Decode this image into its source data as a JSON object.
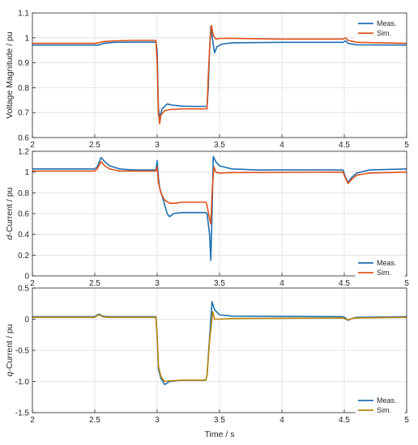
{
  "chart_data": [
    {
      "type": "line",
      "ylabel": "Voltage Magnitude / pu",
      "xlabel": "",
      "xlim": [
        2,
        5
      ],
      "ylim": [
        0.6,
        1.1
      ],
      "xticks": [
        "2",
        "2.5",
        "3",
        "3.5",
        "4",
        "4.5",
        "5"
      ],
      "yticks": [
        "0.6",
        "0.7",
        "0.8",
        "0.9",
        "1",
        "1.1"
      ],
      "grid": true,
      "legend_position": "top-right",
      "series": [
        {
          "name": "Meas.",
          "color": "#1f6fb0",
          "points": [
            [
              2.0,
              0.971
            ],
            [
              2.5,
              0.971
            ],
            [
              2.53,
              0.971
            ],
            [
              2.57,
              0.978
            ],
            [
              2.65,
              0.982
            ],
            [
              2.8,
              0.983
            ],
            [
              2.99,
              0.983
            ],
            [
              3.0,
              0.95
            ],
            [
              3.01,
              0.72
            ],
            [
              3.02,
              0.68
            ],
            [
              3.04,
              0.715
            ],
            [
              3.08,
              0.735
            ],
            [
              3.12,
              0.73
            ],
            [
              3.2,
              0.726
            ],
            [
              3.3,
              0.725
            ],
            [
              3.4,
              0.725
            ],
            [
              3.41,
              0.8
            ],
            [
              3.42,
              0.95
            ],
            [
              3.43,
              1.045
            ],
            [
              3.445,
              0.99
            ],
            [
              3.46,
              0.94
            ],
            [
              3.48,
              0.965
            ],
            [
              3.52,
              0.975
            ],
            [
              3.6,
              0.98
            ],
            [
              4.0,
              0.982
            ],
            [
              4.49,
              0.982
            ],
            [
              4.51,
              0.988
            ],
            [
              4.53,
              0.978
            ],
            [
              4.6,
              0.972
            ],
            [
              5.0,
              0.971
            ]
          ]
        },
        {
          "name": "Sim.",
          "color": "#e0521a",
          "points": [
            [
              2.0,
              0.978
            ],
            [
              2.5,
              0.978
            ],
            [
              2.53,
              0.98
            ],
            [
              2.57,
              0.985
            ],
            [
              2.65,
              0.988
            ],
            [
              2.8,
              0.99
            ],
            [
              2.99,
              0.99
            ],
            [
              3.0,
              0.9
            ],
            [
              3.01,
              0.7
            ],
            [
              3.02,
              0.655
            ],
            [
              3.03,
              0.69
            ],
            [
              3.06,
              0.708
            ],
            [
              3.1,
              0.712
            ],
            [
              3.2,
              0.715
            ],
            [
              3.3,
              0.715
            ],
            [
              3.4,
              0.715
            ],
            [
              3.41,
              0.85
            ],
            [
              3.425,
              1.0
            ],
            [
              3.435,
              1.05
            ],
            [
              3.45,
              1.01
            ],
            [
              3.47,
              0.995
            ],
            [
              3.5,
              0.998
            ],
            [
              3.6,
              0.998
            ],
            [
              4.0,
              0.995
            ],
            [
              4.49,
              0.995
            ],
            [
              4.51,
              1.0
            ],
            [
              4.53,
              0.99
            ],
            [
              4.6,
              0.982
            ],
            [
              5.0,
              0.978
            ]
          ]
        }
      ]
    },
    {
      "type": "line",
      "ylabel": "d-Current / pu",
      "ylabel_italic": "d",
      "ylabel_rest": "-Current / pu",
      "xlabel": "",
      "xlim": [
        2,
        5
      ],
      "ylim": [
        0,
        1.2
      ],
      "xticks": [
        "2",
        "2.5",
        "3",
        "3.5",
        "4",
        "4.5",
        "5"
      ],
      "yticks": [
        "0",
        "0.2",
        "0.4",
        "0.6",
        "0.8",
        "1",
        "1.2"
      ],
      "grid": true,
      "legend_position": "bottom-right",
      "series": [
        {
          "name": "Meas.",
          "color": "#1f6fb0",
          "points": [
            [
              2.0,
              1.03
            ],
            [
              2.5,
              1.03
            ],
            [
              2.52,
              1.05
            ],
            [
              2.55,
              1.14
            ],
            [
              2.58,
              1.1
            ],
            [
              2.62,
              1.06
            ],
            [
              2.7,
              1.03
            ],
            [
              2.8,
              1.02
            ],
            [
              2.99,
              1.02
            ],
            [
              3.0,
              1.11
            ],
            [
              3.01,
              0.95
            ],
            [
              3.02,
              0.85
            ],
            [
              3.05,
              0.73
            ],
            [
              3.08,
              0.6
            ],
            [
              3.1,
              0.57
            ],
            [
              3.13,
              0.6
            ],
            [
              3.2,
              0.61
            ],
            [
              3.3,
              0.61
            ],
            [
              3.39,
              0.61
            ],
            [
              3.4,
              0.6
            ],
            [
              3.42,
              0.4
            ],
            [
              3.43,
              0.15
            ],
            [
              3.44,
              0.6
            ],
            [
              3.45,
              1.15
            ],
            [
              3.47,
              1.1
            ],
            [
              3.5,
              1.06
            ],
            [
              3.6,
              1.03
            ],
            [
              3.8,
              1.02
            ],
            [
              4.49,
              1.02
            ],
            [
              4.51,
              0.95
            ],
            [
              4.53,
              0.9
            ],
            [
              4.56,
              0.95
            ],
            [
              4.6,
              0.99
            ],
            [
              4.7,
              1.02
            ],
            [
              5.0,
              1.03
            ]
          ]
        },
        {
          "name": "Sim.",
          "color": "#e0521a",
          "points": [
            [
              2.0,
              1.01
            ],
            [
              2.5,
              1.01
            ],
            [
              2.52,
              1.03
            ],
            [
              2.55,
              1.1
            ],
            [
              2.58,
              1.06
            ],
            [
              2.62,
              1.03
            ],
            [
              2.7,
              1.01
            ],
            [
              2.99,
              1.01
            ],
            [
              3.0,
              1.05
            ],
            [
              3.01,
              0.9
            ],
            [
              3.03,
              0.8
            ],
            [
              3.06,
              0.73
            ],
            [
              3.1,
              0.7
            ],
            [
              3.15,
              0.7
            ],
            [
              3.2,
              0.71
            ],
            [
              3.3,
              0.71
            ],
            [
              3.39,
              0.71
            ],
            [
              3.4,
              0.68
            ],
            [
              3.42,
              0.55
            ],
            [
              3.43,
              0.5
            ],
            [
              3.44,
              0.8
            ],
            [
              3.455,
              1.05
            ],
            [
              3.47,
              1.0
            ],
            [
              3.5,
              0.99
            ],
            [
              3.6,
              0.995
            ],
            [
              4.49,
              1.0
            ],
            [
              4.51,
              0.94
            ],
            [
              4.53,
              0.89
            ],
            [
              4.56,
              0.93
            ],
            [
              4.6,
              0.97
            ],
            [
              4.7,
              0.99
            ],
            [
              5.0,
              1.0
            ]
          ]
        }
      ]
    },
    {
      "type": "line",
      "ylabel": "q-Current / pu",
      "ylabel_italic": "q",
      "ylabel_rest": "-Current / pu",
      "xlabel": "Time / s",
      "xlim": [
        2,
        5
      ],
      "ylim": [
        -1.5,
        0.5
      ],
      "xticks": [
        "2",
        "2.5",
        "3",
        "3.5",
        "4",
        "4.5",
        "5"
      ],
      "yticks": [
        "-1.5",
        "-1.0",
        "-0.5",
        "0",
        "0.5"
      ],
      "grid": true,
      "legend_position": "bottom-right",
      "series": [
        {
          "name": "Meas.",
          "color": "#1f6fb0",
          "points": [
            [
              2.0,
              0.04
            ],
            [
              2.5,
              0.04
            ],
            [
              2.52,
              0.07
            ],
            [
              2.54,
              0.08
            ],
            [
              2.56,
              0.05
            ],
            [
              2.6,
              0.04
            ],
            [
              2.99,
              0.04
            ],
            [
              3.0,
              -0.3
            ],
            [
              3.01,
              -0.8
            ],
            [
              3.03,
              -0.95
            ],
            [
              3.06,
              -1.05
            ],
            [
              3.1,
              -1.0
            ],
            [
              3.2,
              -0.98
            ],
            [
              3.39,
              -0.98
            ],
            [
              3.4,
              -0.9
            ],
            [
              3.42,
              -0.3
            ],
            [
              3.44,
              0.28
            ],
            [
              3.46,
              0.15
            ],
            [
              3.5,
              0.07
            ],
            [
              3.6,
              0.05
            ],
            [
              4.49,
              0.04
            ],
            [
              4.51,
              0.02
            ],
            [
              4.53,
              -0.02
            ],
            [
              4.56,
              0.01
            ],
            [
              4.6,
              0.03
            ],
            [
              5.0,
              0.04
            ]
          ]
        },
        {
          "name": "Sim.",
          "color": "#b8860b",
          "points": [
            [
              2.0,
              0.03
            ],
            [
              2.5,
              0.03
            ],
            [
              2.52,
              0.06
            ],
            [
              2.54,
              0.07
            ],
            [
              2.56,
              0.04
            ],
            [
              2.6,
              0.03
            ],
            [
              2.99,
              0.03
            ],
            [
              3.0,
              -0.25
            ],
            [
              3.01,
              -0.75
            ],
            [
              3.03,
              -0.92
            ],
            [
              3.06,
              -1.0
            ],
            [
              3.1,
              -0.99
            ],
            [
              3.2,
              -0.98
            ],
            [
              3.39,
              -0.98
            ],
            [
              3.4,
              -0.9
            ],
            [
              3.42,
              -0.35
            ],
            [
              3.445,
              0.12
            ],
            [
              3.46,
              0.0
            ],
            [
              3.5,
              0.0
            ],
            [
              3.6,
              0.01
            ],
            [
              4.49,
              0.02
            ],
            [
              4.51,
              0.0
            ],
            [
              4.53,
              -0.01
            ],
            [
              4.56,
              0.01
            ],
            [
              4.6,
              0.02
            ],
            [
              5.0,
              0.03
            ]
          ]
        }
      ]
    }
  ]
}
